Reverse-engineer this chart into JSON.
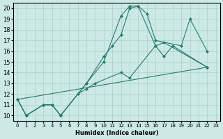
{
  "xlabel": "Humidex (Indice chaleur)",
  "xlim": [
    -0.5,
    23.5
  ],
  "ylim": [
    9.5,
    20.5
  ],
  "xticks": [
    0,
    1,
    2,
    3,
    4,
    5,
    6,
    7,
    8,
    9,
    10,
    11,
    12,
    13,
    14,
    15,
    16,
    17,
    18,
    19,
    20,
    21,
    22,
    23
  ],
  "yticks": [
    10,
    11,
    12,
    13,
    14,
    15,
    16,
    17,
    18,
    19,
    20
  ],
  "background_color": "#cce9e5",
  "grid_color": "#aed4cf",
  "line_color": "#2a7a6e",
  "lines": [
    {
      "x": [
        0,
        1,
        3,
        4,
        5,
        8,
        10,
        11,
        12,
        13,
        14,
        15,
        16,
        19,
        20,
        22
      ],
      "y": [
        11.5,
        10.0,
        11.0,
        11.0,
        10.0,
        13.0,
        15.5,
        16.5,
        17.5,
        20.0,
        20.2,
        19.5,
        17.0,
        16.5,
        19.0,
        16.0
      ]
    },
    {
      "x": [
        0,
        1,
        3,
        4,
        5,
        8,
        10,
        12,
        13,
        14,
        16,
        17,
        18,
        22
      ],
      "y": [
        11.5,
        10.0,
        11.0,
        11.0,
        10.0,
        13.0,
        15.0,
        19.3,
        20.2,
        20.2,
        16.5,
        15.5,
        16.5,
        14.5
      ]
    },
    {
      "x": [
        0,
        1,
        3,
        4,
        5,
        7,
        8,
        9,
        12,
        13,
        16,
        17,
        22
      ],
      "y": [
        11.5,
        10.0,
        11.0,
        11.0,
        10.0,
        12.0,
        12.5,
        13.0,
        14.0,
        13.5,
        16.5,
        16.8,
        14.5
      ]
    },
    {
      "x": [
        0,
        22
      ],
      "y": [
        11.5,
        14.5
      ],
      "no_marker": true
    }
  ]
}
